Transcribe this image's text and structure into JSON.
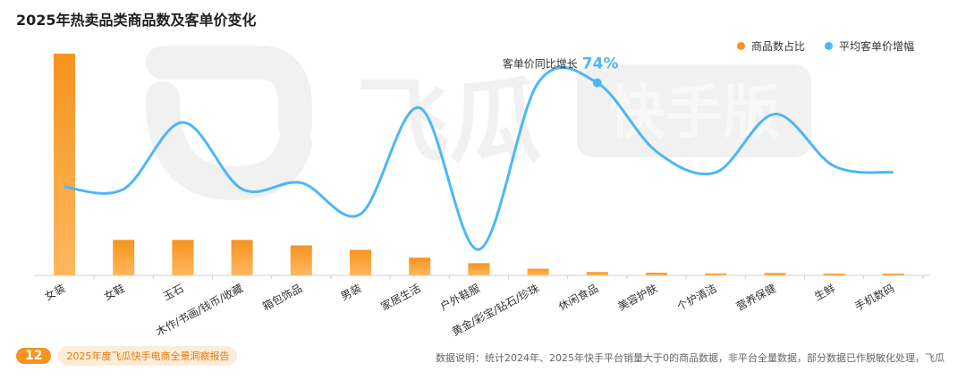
{
  "title": "2025年热卖品类商品数及客单价变化",
  "watermark": {
    "brand": "飞瓜",
    "tag": "快手版"
  },
  "legend": [
    {
      "label": "商品数占比",
      "color": "#f7931e"
    },
    {
      "label": "平均客单价增幅",
      "color": "#4db7f5"
    }
  ],
  "annotation": {
    "label": "客单价同比增长",
    "value": "74%"
  },
  "chart_data": {
    "type": "bar",
    "categories": [
      "女装",
      "女鞋",
      "玉石",
      "木作/书画/钱币/收藏",
      "箱包饰品",
      "男装",
      "家居生活",
      "户外鞋服",
      "黄金/彩宝/钻石/珍珠",
      "休闲食品",
      "美容护肤",
      "个护清洁",
      "营养保健",
      "生鲜",
      "手机数码"
    ],
    "series": [
      {
        "name": "商品数占比",
        "kind": "bar",
        "color": "#f7931e",
        "values": [
          100,
          16,
          16,
          16,
          13.5,
          11.5,
          8,
          5.5,
          3,
          1.5,
          1.2,
          0.9,
          1.1,
          0.8,
          0.8
        ]
      },
      {
        "name": "平均客单价增幅",
        "kind": "line",
        "color": "#4db7f5",
        "values": [
          36,
          35,
          67,
          35,
          38,
          23,
          74,
          6,
          86,
          86,
          53,
          43,
          71,
          46,
          43
        ],
        "highlight_index": 9
      }
    ],
    "ylim": [
      0,
      100
    ],
    "grid": false,
    "legend_position": "top-right"
  },
  "footer": {
    "page_number": "12",
    "report_name": "2025年度飞瓜快手电商全景洞察报告",
    "note": "数据说明：统计2024年、2025年快手平台销量大于0的商品数据，非平台全量数据，部分数据已作脱敏化处理，飞瓜"
  }
}
